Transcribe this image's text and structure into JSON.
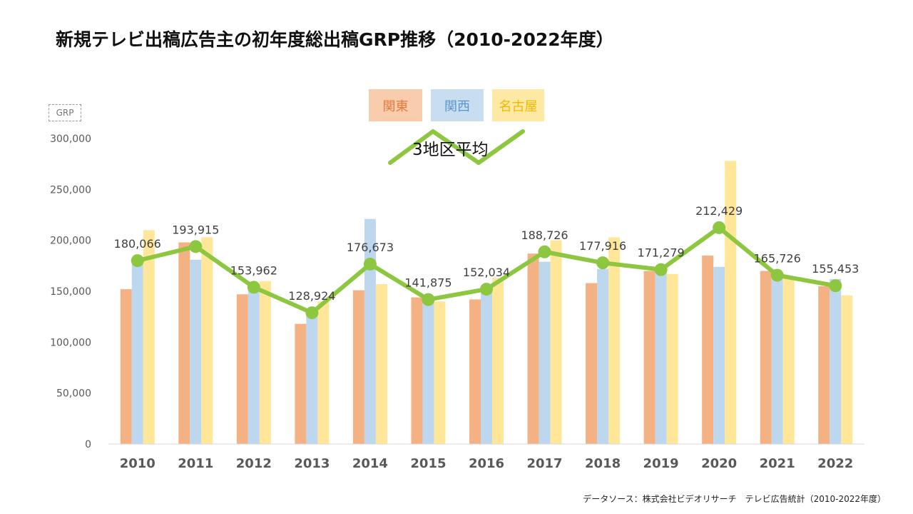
{
  "chart_data": {
    "type": "bar",
    "title": "新規テレビ出稿広告主の初年度総出稿GRP推移（2010-2022年度）",
    "ylabel": "GRP",
    "ylim": [
      0,
      300000
    ],
    "yticks": [
      0,
      50000,
      100000,
      150000,
      200000,
      250000,
      300000
    ],
    "ytick_labels": [
      "0",
      "50,000",
      "100,000",
      "150,000",
      "200,000",
      "250,000",
      "300,000"
    ],
    "categories": [
      "2010",
      "2011",
      "2012",
      "2013",
      "2014",
      "2015",
      "2016",
      "2017",
      "2018",
      "2019",
      "2020",
      "2021",
      "2022"
    ],
    "series": [
      {
        "name": "関東",
        "kind": "bar",
        "color": "#f4b183",
        "values": [
          152000,
          198000,
          147000,
          118000,
          151000,
          144000,
          142000,
          187000,
          158000,
          170000,
          185000,
          170000,
          155000
        ]
      },
      {
        "name": "関西",
        "kind": "bar",
        "color": "#bdd7ee",
        "values": [
          180000,
          181000,
          154000,
          130000,
          221000,
          142000,
          150000,
          179000,
          172000,
          174000,
          174000,
          162000,
          162000
        ]
      },
      {
        "name": "名古屋",
        "kind": "bar",
        "color": "#ffe699",
        "values": [
          210000,
          203000,
          160000,
          140000,
          157000,
          140000,
          163000,
          200000,
          203000,
          167000,
          278000,
          163000,
          146000
        ]
      },
      {
        "name": "3地区平均",
        "kind": "line",
        "color": "#8dc63f",
        "values": [
          180066,
          193915,
          153962,
          128924,
          176673,
          141875,
          152034,
          188726,
          177916,
          171279,
          212429,
          165726,
          155453
        ],
        "labels": [
          "180,066",
          "193,915",
          "153,962",
          "128,924",
          "176,673",
          "141,875",
          "152,034",
          "188,726",
          "177,916",
          "171,279",
          "212,429",
          "165,726",
          "155,453"
        ]
      }
    ],
    "legend": "top-center"
  },
  "source": "データソース：株式会社ビデオリサーチ　テレビ広告統計（2010-2022年度）",
  "colors": {
    "accent_line": "#8dc63f",
    "axis": "#d9d9d9"
  }
}
